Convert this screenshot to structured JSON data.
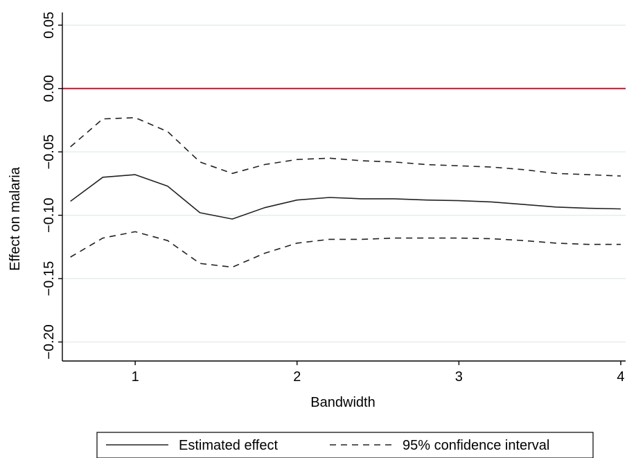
{
  "chart_data": {
    "type": "line",
    "title": "",
    "xlabel": "Bandwidth",
    "ylabel": "Effect on malaria",
    "xlim": [
      0.55,
      4.03
    ],
    "ylim": [
      -0.215,
      0.06
    ],
    "xticks": [
      1,
      2,
      3,
      4
    ],
    "xtick_labels": [
      "1",
      "2",
      "3",
      "4"
    ],
    "yticks": [
      0.05,
      0.0,
      -0.05,
      -0.1,
      -0.15,
      -0.2
    ],
    "ytick_labels": [
      "0.05",
      "0.00",
      "−0.05",
      "−0.10",
      "−0.15",
      "−0.20"
    ],
    "grid": "horizontal",
    "legend_position": "bottom",
    "reference_line": {
      "y": 0.0,
      "color": "#c8102e"
    },
    "x": [
      0.6,
      0.8,
      1.0,
      1.2,
      1.4,
      1.6,
      1.8,
      2.0,
      2.2,
      2.4,
      2.6,
      2.8,
      3.0,
      3.2,
      3.4,
      3.6,
      3.8,
      4.0
    ],
    "series": [
      {
        "name": "Estimated effect",
        "style": "solid",
        "color": "#222222",
        "values": [
          -0.089,
          -0.07,
          -0.068,
          -0.077,
          -0.098,
          -0.103,
          -0.094,
          -0.088,
          -0.086,
          -0.087,
          -0.087,
          -0.088,
          -0.0885,
          -0.0895,
          -0.0915,
          -0.0935,
          -0.0945,
          -0.095
        ]
      },
      {
        "name": "95% confidence interval",
        "style": "dashed",
        "color": "#222222",
        "values": [
          -0.046,
          -0.024,
          -0.023,
          -0.034,
          -0.058,
          -0.067,
          -0.06,
          -0.056,
          -0.055,
          -0.057,
          -0.058,
          -0.06,
          -0.061,
          -0.062,
          -0.064,
          -0.067,
          -0.068,
          -0.069
        ]
      },
      {
        "name": "",
        "style": "dashed",
        "color": "#222222",
        "values": [
          -0.133,
          -0.118,
          -0.113,
          -0.12,
          -0.138,
          -0.141,
          -0.13,
          -0.122,
          -0.119,
          -0.119,
          -0.118,
          -0.118,
          -0.118,
          -0.1185,
          -0.12,
          -0.122,
          -0.123,
          -0.123
        ]
      }
    ]
  }
}
